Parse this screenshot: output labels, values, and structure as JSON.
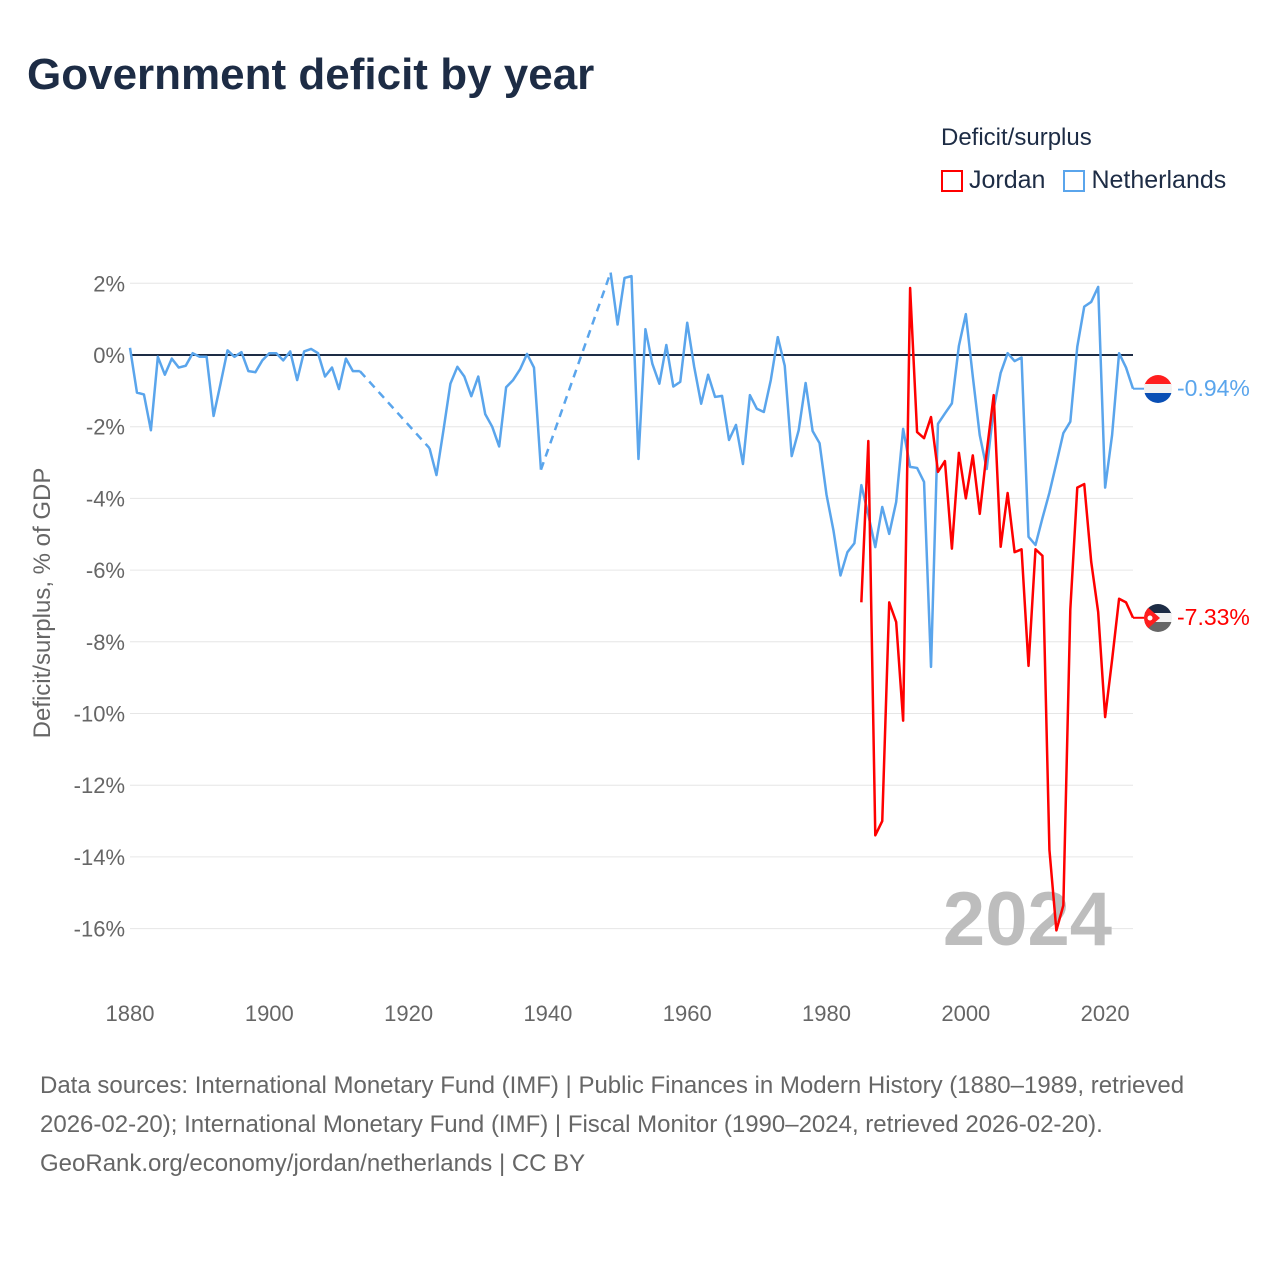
{
  "title": "Government deficit by year",
  "legend": {
    "title": "Deficit/surplus",
    "items": [
      {
        "label": "Jordan",
        "color": "#ff0000"
      },
      {
        "label": "Netherlands",
        "color": "#5aa5ec"
      }
    ]
  },
  "footer": {
    "sources": "Data sources: International Monetary Fund (IMF) | Public Finances in Modern History (1880–1989, retrieved 2026-02-20); International Monetary Fund (IMF) | Fiscal Monitor (1990–2024, retrieved 2026-02-20).",
    "credit": "GeoRank.org/economy/jordan/netherlands | CC BY"
  },
  "chart_data": {
    "type": "line",
    "title": "Government deficit by year",
    "xlabel": "",
    "ylabel": "Deficit/surplus, % of GDP",
    "xlim": [
      1880,
      2024
    ],
    "ylim": [
      -16,
      2
    ],
    "x_ticks": [
      1880,
      1900,
      1920,
      1940,
      1960,
      1980,
      2000,
      2020
    ],
    "x_tick_labels": [
      "1880",
      "1900",
      "1920",
      "1940",
      "1960",
      "1980",
      "2000",
      "2020"
    ],
    "y_ticks": [
      2,
      0,
      -2,
      -4,
      -6,
      -8,
      -10,
      -12,
      -14,
      -16
    ],
    "y_tick_labels": [
      "2%",
      "0%",
      "-2%",
      "-4%",
      "-6%",
      "-8%",
      "-10%",
      "-12%",
      "-14%",
      "-16%"
    ],
    "grid": true,
    "legend_position": "top-right",
    "watermark_year": "2024",
    "series": [
      {
        "name": "Netherlands",
        "color": "#5aa5ec",
        "end_label": "-0.94%",
        "flag": "netherlands",
        "points": [
          [
            1880,
            0.2
          ],
          [
            1881,
            -1.05
          ],
          [
            1882,
            -1.1
          ],
          [
            1883,
            -2.1
          ],
          [
            1884,
            -0.05
          ],
          [
            1885,
            -0.55
          ],
          [
            1886,
            -0.1
          ],
          [
            1887,
            -0.35
          ],
          [
            1888,
            -0.3
          ],
          [
            1889,
            0.05
          ],
          [
            1890,
            -0.05
          ],
          [
            1891,
            -0.05
          ],
          [
            1892,
            -1.7
          ],
          [
            1893,
            -0.8
          ],
          [
            1894,
            0.13
          ],
          [
            1895,
            -0.05
          ],
          [
            1896,
            0.08
          ],
          [
            1897,
            -0.45
          ],
          [
            1898,
            -0.48
          ],
          [
            1899,
            -0.15
          ],
          [
            1900,
            0.05
          ],
          [
            1901,
            0.05
          ],
          [
            1902,
            -0.15
          ],
          [
            1903,
            0.1
          ],
          [
            1904,
            -0.7
          ],
          [
            1905,
            0.1
          ],
          [
            1906,
            0.17
          ],
          [
            1907,
            0.05
          ],
          [
            1908,
            -0.6
          ],
          [
            1909,
            -0.35
          ],
          [
            1910,
            -0.95
          ],
          [
            1911,
            -0.1
          ],
          [
            1912,
            -0.45
          ],
          [
            1913,
            -0.45
          ],
          [
            1923,
            -2.6
          ],
          [
            1924,
            -3.35
          ],
          [
            1925,
            -2.1
          ],
          [
            1926,
            -0.8
          ],
          [
            1927,
            -0.33
          ],
          [
            1928,
            -0.6
          ],
          [
            1929,
            -1.15
          ],
          [
            1930,
            -0.6
          ],
          [
            1931,
            -1.65
          ],
          [
            1932,
            -2.0
          ],
          [
            1933,
            -2.55
          ],
          [
            1934,
            -0.9
          ],
          [
            1935,
            -0.7
          ],
          [
            1936,
            -0.4
          ],
          [
            1937,
            0.03
          ],
          [
            1938,
            -0.35
          ],
          [
            1939,
            -3.2
          ],
          [
            1949,
            2.3
          ],
          [
            1950,
            0.85
          ],
          [
            1951,
            2.15
          ],
          [
            1952,
            2.2
          ],
          [
            1953,
            -2.9
          ],
          [
            1954,
            0.72
          ],
          [
            1955,
            -0.25
          ],
          [
            1956,
            -0.8
          ],
          [
            1957,
            0.28
          ],
          [
            1958,
            -0.88
          ],
          [
            1959,
            -0.75
          ],
          [
            1960,
            0.9
          ],
          [
            1961,
            -0.33
          ],
          [
            1962,
            -1.36
          ],
          [
            1963,
            -0.55
          ],
          [
            1964,
            -1.17
          ],
          [
            1965,
            -1.14
          ],
          [
            1966,
            -2.37
          ],
          [
            1967,
            -1.95
          ],
          [
            1968,
            -3.04
          ],
          [
            1969,
            -1.12
          ],
          [
            1970,
            -1.5
          ],
          [
            1971,
            -1.59
          ],
          [
            1972,
            -0.7
          ],
          [
            1973,
            0.5
          ],
          [
            1974,
            -0.3
          ],
          [
            1975,
            -2.82
          ],
          [
            1976,
            -2.1
          ],
          [
            1977,
            -0.78
          ],
          [
            1978,
            -2.12
          ],
          [
            1979,
            -2.46
          ],
          [
            1980,
            -3.9
          ],
          [
            1981,
            -4.9
          ],
          [
            1982,
            -6.15
          ],
          [
            1983,
            -5.5
          ],
          [
            1984,
            -5.25
          ],
          [
            1985,
            -3.63
          ],
          [
            1986,
            -4.46
          ],
          [
            1987,
            -5.36
          ],
          [
            1988,
            -4.24
          ],
          [
            1989,
            -4.99
          ],
          [
            1990,
            -4.1
          ],
          [
            1991,
            -2.06
          ],
          [
            1992,
            -3.12
          ],
          [
            1993,
            -3.15
          ],
          [
            1994,
            -3.54
          ],
          [
            1995,
            -8.7
          ],
          [
            1996,
            -1.92
          ],
          [
            1997,
            -1.63
          ],
          [
            1998,
            -1.35
          ],
          [
            1999,
            0.25
          ],
          [
            2000,
            1.14
          ],
          [
            2001,
            -0.6
          ],
          [
            2002,
            -2.24
          ],
          [
            2003,
            -3.18
          ],
          [
            2004,
            -1.5
          ],
          [
            2005,
            -0.5
          ],
          [
            2006,
            0.05
          ],
          [
            2007,
            -0.17
          ],
          [
            2008,
            -0.07
          ],
          [
            2009,
            -5.07
          ],
          [
            2010,
            -5.3
          ],
          [
            2011,
            -4.55
          ],
          [
            2012,
            -3.84
          ],
          [
            2013,
            -3.02
          ],
          [
            2014,
            -2.18
          ],
          [
            2015,
            -1.86
          ],
          [
            2016,
            0.23
          ],
          [
            2017,
            1.35
          ],
          [
            2018,
            1.48
          ],
          [
            2019,
            1.9
          ],
          [
            2020,
            -3.7
          ],
          [
            2021,
            -2.23
          ],
          [
            2022,
            0.05
          ],
          [
            2023,
            -0.35
          ],
          [
            2024,
            -0.94
          ]
        ]
      },
      {
        "name": "Jordan",
        "color": "#ff0000",
        "end_label": "-7.33%",
        "flag": "jordan",
        "points": [
          [
            1985,
            -6.9
          ],
          [
            1986,
            -2.4
          ],
          [
            1987,
            -13.4
          ],
          [
            1988,
            -13.0
          ],
          [
            1989,
            -6.9
          ],
          [
            1990,
            -7.45
          ],
          [
            1991,
            -10.2
          ],
          [
            1992,
            1.87
          ],
          [
            1993,
            -2.15
          ],
          [
            1994,
            -2.32
          ],
          [
            1995,
            -1.73
          ],
          [
            1996,
            -3.26
          ],
          [
            1997,
            -2.96
          ],
          [
            1998,
            -5.4
          ],
          [
            1999,
            -2.73
          ],
          [
            2000,
            -4.0
          ],
          [
            2001,
            -2.8
          ],
          [
            2002,
            -4.43
          ],
          [
            2003,
            -2.7
          ],
          [
            2004,
            -1.12
          ],
          [
            2005,
            -5.35
          ],
          [
            2006,
            -3.85
          ],
          [
            2007,
            -5.5
          ],
          [
            2008,
            -5.42
          ],
          [
            2009,
            -8.67
          ],
          [
            2010,
            -5.42
          ],
          [
            2011,
            -5.6
          ],
          [
            2012,
            -13.8
          ],
          [
            2013,
            -16.05
          ],
          [
            2014,
            -15.35
          ],
          [
            2015,
            -7.1
          ],
          [
            2016,
            -3.7
          ],
          [
            2017,
            -3.6
          ],
          [
            2018,
            -5.77
          ],
          [
            2019,
            -7.17
          ],
          [
            2020,
            -10.1
          ],
          [
            2021,
            -8.5
          ],
          [
            2022,
            -6.8
          ],
          [
            2023,
            -6.9
          ],
          [
            2024,
            -7.33
          ]
        ]
      }
    ]
  }
}
